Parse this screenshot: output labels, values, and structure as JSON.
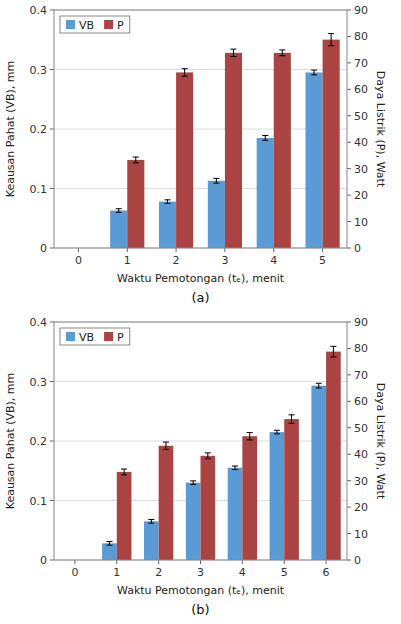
{
  "chart_data": [
    {
      "type": "bar",
      "x": [
        1,
        2,
        3,
        4,
        5
      ],
      "series": [
        {
          "name": "VB",
          "color": "#5b9bd5",
          "values": [
            0.063,
            0.078,
            0.113,
            0.185,
            0.295
          ],
          "errors": [
            0.003,
            0.003,
            0.004,
            0.004,
            0.004
          ]
        },
        {
          "name": "P",
          "color": "#a94442",
          "axis": "y2",
          "values": [
            33.3,
            66.4,
            73.8,
            73.8,
            78.8
          ],
          "errors": [
            1.1,
            1.4,
            1.4,
            1.1,
            2.3
          ]
        }
      ],
      "x_label": "Waktu Pemotongan (tₑ), menit",
      "y_label": "Keausan Pahat (VB), mm",
      "y2_label": "Daya Listrik (P), Watt",
      "xlim": [
        -0.5,
        5.5
      ],
      "xticks": [
        0,
        1,
        2,
        3,
        4,
        5
      ],
      "ylim": [
        0,
        0.4
      ],
      "yticks": [
        0,
        0.1,
        0.2,
        0.3,
        0.4
      ],
      "y2lim": [
        0,
        90
      ],
      "y2ticks": [
        0,
        10,
        20,
        30,
        40,
        50,
        60,
        70,
        80,
        90
      ],
      "grid": true,
      "legend": "upper left",
      "annotations": [
        "(a)"
      ]
    },
    {
      "type": "bar",
      "x": [
        1,
        2,
        3,
        4,
        5,
        6
      ],
      "series": [
        {
          "name": "VB",
          "color": "#5b9bd5",
          "values": [
            0.028,
            0.065,
            0.13,
            0.155,
            0.215,
            0.293
          ],
          "errors": [
            0.003,
            0.003,
            0.003,
            0.003,
            0.003,
            0.004
          ]
        },
        {
          "name": "P",
          "color": "#a94442",
          "axis": "y2",
          "values": [
            33.3,
            43.2,
            39.4,
            46.8,
            53.3,
            78.8
          ],
          "errors": [
            1.1,
            1.4,
            1.1,
            1.4,
            1.6,
            2.0
          ]
        }
      ],
      "x_label": "Waktu Pemotongan (tₑ), menit",
      "y_label": "Keausan Pahat (VB), mm",
      "y2_label": "Daya Listrik (P), Watt",
      "xlim": [
        -0.5,
        6.5
      ],
      "xticks": [
        0,
        1,
        2,
        3,
        4,
        5,
        6
      ],
      "ylim": [
        0,
        0.4
      ],
      "yticks": [
        0,
        0.1,
        0.2,
        0.3,
        0.4
      ],
      "y2lim": [
        0,
        90
      ],
      "y2ticks": [
        0,
        10,
        20,
        30,
        40,
        50,
        60,
        70,
        80,
        90
      ],
      "grid": true,
      "legend": "upper left",
      "annotations": [
        "(b)"
      ]
    }
  ]
}
